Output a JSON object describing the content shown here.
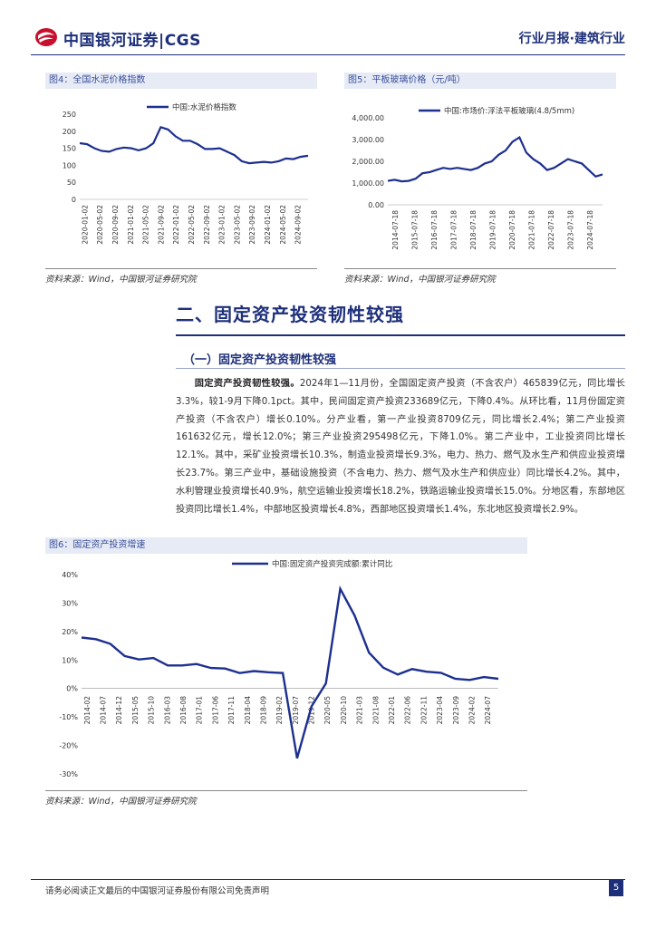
{
  "header": {
    "logo_text": "中国银河证券|CGS",
    "report_tag": "行业月报·建筑行业"
  },
  "figures": {
    "fig4": {
      "caption": "图4：全国水泥价格指数",
      "source": "资料来源：Wind，中国银河证券研究院"
    },
    "fig5": {
      "caption": "图5：平板玻璃价格（元/吨）",
      "source": "资料来源：Wind，中国银河证券研究院"
    },
    "fig6": {
      "caption": "图6：固定资产投资增速",
      "source": "资料来源：Wind，中国银河证券研究院"
    }
  },
  "section": {
    "title": "二、固定资产投资韧性较强",
    "subtitle": "（一）固定资产投资韧性较强",
    "para_bold": "固定资产投资韧性较强。",
    "para_text": "2024年1—11月份，全国固定资产投资（不含农户）465839亿元，同比增长3.3%，较1-9月下降0.1pct。其中，民间固定资产投资233689亿元，下降0.4%。从环比看，11月份固定资产投资（不含农户）增长0.10%。分产业看，第一产业投资8709亿元，同比增长2.4%；第二产业投资161632亿元，增长12.0%；第三产业投资295498亿元，下降1.0%。第二产业中，工业投资同比增长12.1%。其中，采矿业投资增长10.3%，制造业投资增长9.3%，电力、热力、燃气及水生产和供应业投资增长23.7%。第三产业中，基础设施投资（不含电力、热力、燃气及水生产和供应业）同比增长4.2%。其中，水利管理业投资增长40.9%，航空运输业投资增长18.2%，铁路运输业投资增长15.0%。分地区看，东部地区投资同比增长1.4%，中部地区投资增长4.8%，西部地区投资增长1.4%，东北地区投资增长2.9%。"
  },
  "footer": {
    "disclaimer": "请务必阅读正文最后的中国银河证券股份有限公司免责声明",
    "page_number": "5"
  },
  "chart_data": [
    {
      "type": "line",
      "title": "",
      "series": [
        {
          "name": "中国:水泥价格指数",
          "x": [
            "2020-01-03",
            "2020-03",
            "2020-05",
            "2020-07",
            "2020-09",
            "2020-11",
            "2021-01",
            "2021-03",
            "2021-05",
            "2021-07",
            "2021-09",
            "2021-10",
            "2021-11",
            "2021-12",
            "2022-01",
            "2022-03",
            "2022-05",
            "2022-07",
            "2022-09",
            "2022-11",
            "2023-01",
            "2023-03",
            "2023-05",
            "2023-07",
            "2023-09",
            "2023-11",
            "2024-01",
            "2024-03",
            "2024-05",
            "2024-07",
            "2024-09",
            "2024-11"
          ],
          "values": [
            165,
            162,
            150,
            142,
            140,
            148,
            152,
            150,
            144,
            150,
            165,
            212,
            205,
            185,
            172,
            172,
            162,
            148,
            148,
            150,
            140,
            130,
            112,
            106,
            108,
            110,
            108,
            112,
            120,
            118,
            125,
            128
          ]
        }
      ],
      "x_ticks": [
        "2020-01-02",
        "2020-05-02",
        "2020-09-02",
        "2021-01-02",
        "2021-05-02",
        "2021-09-02",
        "2022-01-02",
        "2022-05-02",
        "2022-09-02",
        "2023-01-02",
        "2023-05-02",
        "2023-09-02",
        "2024-01-02",
        "2024-05-02",
        "2024-09-02"
      ],
      "y_ticks": [
        "250",
        "200",
        "150",
        "100",
        "50",
        "0"
      ],
      "ylim": [
        0,
        250
      ],
      "color": "#1d2f8f"
    },
    {
      "type": "line",
      "title": "",
      "series": [
        {
          "name": "中国:市场价:浮法平板玻璃(4.8/5mm)",
          "x": [
            "2014",
            "2014.5",
            "2015",
            "2015.5",
            "2016",
            "2016.5",
            "2017",
            "2017.5",
            "2018",
            "2018.5",
            "2019",
            "2019.5",
            "2020",
            "2020.3",
            "2020.6",
            "2020.9",
            "2021.1",
            "2021.3",
            "2021.5",
            "2021.7",
            "2021.9",
            "2022.1",
            "2022.4",
            "2022.7",
            "2023",
            "2023.3",
            "2023.6",
            "2023.9",
            "2024.2",
            "2024.5",
            "2024.8",
            "2024.9"
          ],
          "values": [
            1100,
            1150,
            1080,
            1100,
            1200,
            1450,
            1500,
            1600,
            1700,
            1650,
            1700,
            1650,
            1600,
            1700,
            1900,
            2000,
            2300,
            2500,
            2900,
            3100,
            2400,
            2100,
            1900,
            1600,
            1700,
            1900,
            2100,
            2000,
            1900,
            1600,
            1300,
            1400
          ]
        }
      ],
      "x_ticks": [
        "2014-07-18",
        "2015-07-18",
        "2016-07-18",
        "2017-07-18",
        "2018-07-18",
        "2019-07-18",
        "2020-07-18",
        "2021-07-18",
        "2022-07-18",
        "2023-07-18",
        "2024-07-18"
      ],
      "y_ticks": [
        "4,000.00",
        "3,000.00",
        "2,000.00",
        "1,000.00",
        "0.00"
      ],
      "ylim": [
        0,
        4000
      ],
      "color": "#1d2f8f"
    },
    {
      "type": "line",
      "title": "",
      "series": [
        {
          "name": "中国:固定资产投资完成额:累计同比",
          "x": [
            "2014-02",
            "2014-06",
            "2014-12",
            "2015-05",
            "2015-10",
            "2016-03",
            "2016-08",
            "2017-01",
            "2017-06",
            "2017-11",
            "2018-04",
            "2018-09",
            "2019-02",
            "2019-07",
            "2019-12",
            "2020-02",
            "2020-05",
            "2020-10",
            "2021-02",
            "2021-03",
            "2021-06",
            "2021-09",
            "2021-12",
            "2022-04",
            "2022-09",
            "2023-02",
            "2023-07",
            "2023-12",
            "2024-05",
            "2024-10"
          ],
          "values": [
            17.9,
            17.3,
            15.7,
            11.4,
            10.2,
            10.7,
            8.1,
            8.1,
            8.6,
            7.2,
            7.0,
            5.4,
            6.1,
            5.7,
            5.4,
            -24.5,
            -6.3,
            1.8,
            35.0,
            25.6,
            12.6,
            7.3,
            4.9,
            6.8,
            5.9,
            5.5,
            3.4,
            3.0,
            4.0,
            3.4
          ]
        }
      ],
      "x_ticks": [
        "2014-02",
        "2014-07",
        "2014-12",
        "2015-05",
        "2015-10",
        "2016-03",
        "2016-08",
        "2017-01",
        "2017-06",
        "2017-11",
        "2018-04",
        "2018-09",
        "2019-02",
        "2019-07",
        "2019-12",
        "2020-05",
        "2020-10",
        "2021-03",
        "2021-08",
        "2022-01",
        "2022-06",
        "2022-11",
        "2023-04",
        "2023-09",
        "2024-02",
        "2024-07"
      ],
      "y_ticks": [
        "40%",
        "30%",
        "20%",
        "10%",
        "0%",
        "-10%",
        "-20%",
        "-30%"
      ],
      "ylim": [
        -30,
        40
      ],
      "color": "#1d2f8f"
    }
  ]
}
